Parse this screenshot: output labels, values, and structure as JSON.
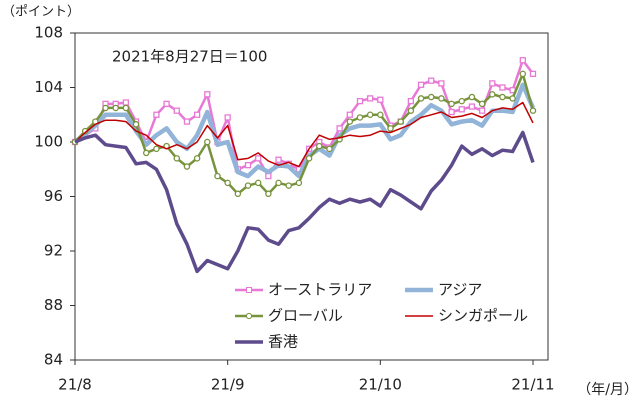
{
  "chart_data": {
    "type": "line",
    "y_label": "（ポイント）",
    "x_label": "（年/月）",
    "annotation": "2021年8月27日＝100",
    "categories": [
      "21/8",
      null,
      null,
      null,
      null,
      null,
      null,
      null,
      null,
      null,
      null,
      null,
      null,
      null,
      null,
      "21/9",
      null,
      null,
      null,
      null,
      null,
      null,
      null,
      null,
      null,
      null,
      null,
      null,
      null,
      null,
      "21/10",
      null,
      null,
      null,
      null,
      null,
      null,
      null,
      null,
      null,
      null,
      null,
      null,
      null,
      null,
      "21/11"
    ],
    "ylim": [
      84,
      108
    ],
    "yticks": [
      84,
      88,
      92,
      96,
      100,
      104,
      108
    ],
    "series": [
      {
        "name": "オーストラリア",
        "color": "#e878d6",
        "marker": "square",
        "width": 2.5,
        "values": [
          100,
          100.5,
          101,
          102.8,
          102.8,
          102.9,
          101.5,
          100,
          102,
          102.8,
          102.3,
          101.5,
          102,
          103.5,
          100,
          101.8,
          98,
          98.3,
          98.8,
          97.5,
          98.7,
          98.4,
          98,
          99.5,
          100,
          99.6,
          101,
          102,
          103,
          103.2,
          103.1,
          101.2,
          101.5,
          103,
          104.2,
          104.5,
          104.3,
          102.2,
          102.4,
          102.6,
          102.3,
          104.3,
          104,
          103.8,
          106,
          105
        ]
      },
      {
        "name": "アジア",
        "color": "#92b4d8",
        "marker": "none",
        "width": 4.5,
        "values": [
          100,
          100.6,
          101.2,
          102,
          102,
          102,
          100.8,
          99.8,
          100.5,
          101,
          100,
          99.5,
          100.5,
          102.2,
          99.8,
          100,
          97.8,
          97.5,
          98.2,
          97.8,
          98.3,
          98.2,
          97.5,
          99,
          99.5,
          99,
          100.5,
          101,
          101.2,
          101.2,
          101.3,
          100.2,
          100.5,
          101.5,
          102,
          102.7,
          102.3,
          101.3,
          101.5,
          101.6,
          101.2,
          102.3,
          102.3,
          102.2,
          104.2,
          102.5
        ]
      },
      {
        "name": "グローバル",
        "color": "#77933c",
        "marker": "circle",
        "width": 2.5,
        "values": [
          100,
          100.8,
          101.5,
          102.5,
          102.5,
          102.5,
          101.3,
          99.2,
          99.5,
          99.7,
          98.8,
          98.2,
          98.8,
          100,
          97.5,
          97,
          96.2,
          96.8,
          97,
          96.2,
          97,
          96.8,
          97,
          98.8,
          99.7,
          99.5,
          100.2,
          101.5,
          101.8,
          102,
          102,
          101,
          101.5,
          102.3,
          103.2,
          103.3,
          103.2,
          102.8,
          103,
          103.3,
          102.8,
          103.5,
          103.3,
          103.2,
          105,
          102.3
        ]
      },
      {
        "name": "シンガポール",
        "color": "#c00000",
        "marker": "none",
        "width": 1.5,
        "values": [
          100,
          100.7,
          101.3,
          101.6,
          101.6,
          101.5,
          100.8,
          100.5,
          99.8,
          99.5,
          99.8,
          99.5,
          100,
          101.2,
          100.3,
          101.2,
          98.7,
          98.8,
          99.2,
          98.6,
          98.3,
          98.5,
          98.2,
          99.5,
          100.5,
          100.2,
          100.3,
          100.5,
          100.4,
          100.5,
          100.8,
          100.7,
          101,
          101.3,
          101.8,
          102,
          102.2,
          101.8,
          101.9,
          102.1,
          101.8,
          102.3,
          102.5,
          102.4,
          102.9,
          101.4
        ]
      },
      {
        "name": "香港",
        "color": "#5d4b8c",
        "marker": "none",
        "width": 3.5,
        "values": [
          100,
          100.3,
          100.5,
          99.8,
          99.7,
          99.6,
          98.4,
          98.5,
          98,
          96.5,
          94,
          92.5,
          90.5,
          91.3,
          91,
          90.7,
          92,
          93.7,
          93.6,
          92.8,
          92.5,
          93.5,
          93.7,
          94.4,
          95.2,
          95.8,
          95.5,
          95.8,
          95.6,
          95.8,
          95.3,
          96.5,
          96.1,
          95.6,
          95.1,
          96.4,
          97.2,
          98.3,
          99.7,
          99.1,
          99.5,
          99,
          99.4,
          99.3,
          100.7,
          98.5
        ]
      }
    ]
  }
}
